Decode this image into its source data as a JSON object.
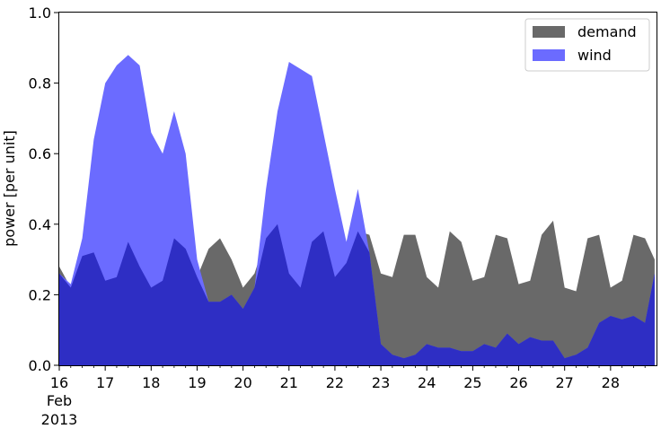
{
  "chart_data": {
    "type": "area",
    "ylabel": "power [per unit]",
    "xlabel": "",
    "ylim": [
      0.0,
      1.0
    ],
    "xlim": [
      "2013-02-16",
      "2013-02-29"
    ],
    "y_ticks": [
      "0.0",
      "0.2",
      "0.4",
      "0.6",
      "0.8",
      "1.0"
    ],
    "x_ticks": [
      "16",
      "17",
      "18",
      "19",
      "20",
      "21",
      "22",
      "23",
      "24",
      "25",
      "26",
      "27",
      "28"
    ],
    "x_tick_sub": [
      "Feb",
      "2013"
    ],
    "grid": false,
    "legend_position": "top-right",
    "colors": {
      "demand": "#696969",
      "wind": "#6b6bff",
      "overlap": "#2e2ec4"
    },
    "x": [
      "2013-02-16 00:00",
      "2013-02-16 06:00",
      "2013-02-16 12:00",
      "2013-02-16 18:00",
      "2013-02-17 00:00",
      "2013-02-17 06:00",
      "2013-02-17 12:00",
      "2013-02-17 18:00",
      "2013-02-18 00:00",
      "2013-02-18 06:00",
      "2013-02-18 12:00",
      "2013-02-18 18:00",
      "2013-02-19 00:00",
      "2013-02-19 06:00",
      "2013-02-19 12:00",
      "2013-02-19 18:00",
      "2013-02-20 00:00",
      "2013-02-20 06:00",
      "2013-02-20 12:00",
      "2013-02-20 18:00",
      "2013-02-21 00:00",
      "2013-02-21 06:00",
      "2013-02-21 12:00",
      "2013-02-21 18:00",
      "2013-02-22 00:00",
      "2013-02-22 06:00",
      "2013-02-22 12:00",
      "2013-02-22 18:00",
      "2013-02-23 00:00",
      "2013-02-23 06:00",
      "2013-02-23 12:00",
      "2013-02-23 18:00",
      "2013-02-24 00:00",
      "2013-02-24 06:00",
      "2013-02-24 12:00",
      "2013-02-24 18:00",
      "2013-02-25 00:00",
      "2013-02-25 06:00",
      "2013-02-25 12:00",
      "2013-02-25 18:00",
      "2013-02-26 00:00",
      "2013-02-26 06:00",
      "2013-02-26 12:00",
      "2013-02-26 18:00",
      "2013-02-27 00:00",
      "2013-02-27 06:00",
      "2013-02-27 12:00",
      "2013-02-27 18:00",
      "2013-02-28 00:00",
      "2013-02-28 06:00",
      "2013-02-28 12:00",
      "2013-02-28 18:00",
      "2013-02-28 23:00"
    ],
    "series": [
      {
        "name": "demand",
        "values": [
          0.28,
          0.22,
          0.31,
          0.32,
          0.24,
          0.25,
          0.35,
          0.28,
          0.22,
          0.24,
          0.36,
          0.33,
          0.25,
          0.33,
          0.36,
          0.3,
          0.22,
          0.26,
          0.36,
          0.4,
          0.26,
          0.22,
          0.35,
          0.38,
          0.25,
          0.29,
          0.38,
          0.37,
          0.26,
          0.25,
          0.37,
          0.37,
          0.25,
          0.22,
          0.38,
          0.35,
          0.24,
          0.25,
          0.37,
          0.36,
          0.23,
          0.24,
          0.37,
          0.41,
          0.22,
          0.21,
          0.36,
          0.37,
          0.22,
          0.24,
          0.37,
          0.36,
          0.3
        ]
      },
      {
        "name": "wind",
        "values": [
          0.26,
          0.23,
          0.36,
          0.64,
          0.8,
          0.85,
          0.88,
          0.85,
          0.66,
          0.6,
          0.72,
          0.6,
          0.3,
          0.18,
          0.18,
          0.2,
          0.16,
          0.22,
          0.5,
          0.72,
          0.86,
          0.84,
          0.82,
          0.66,
          0.5,
          0.35,
          0.5,
          0.32,
          0.06,
          0.03,
          0.02,
          0.03,
          0.06,
          0.05,
          0.05,
          0.04,
          0.04,
          0.06,
          0.05,
          0.09,
          0.06,
          0.08,
          0.07,
          0.07,
          0.02,
          0.03,
          0.05,
          0.12,
          0.14,
          0.13,
          0.14,
          0.12,
          0.26
        ]
      }
    ]
  }
}
